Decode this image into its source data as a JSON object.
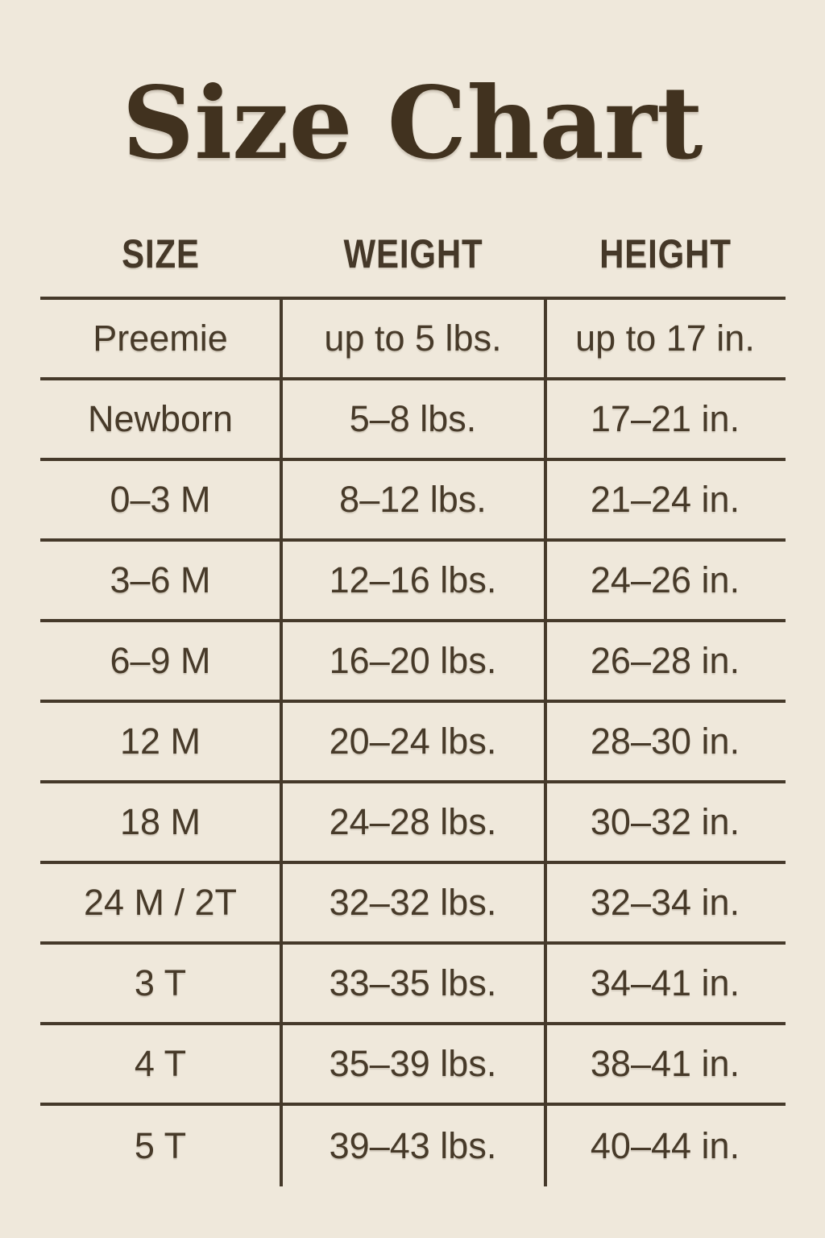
{
  "page": {
    "title": "Size Chart",
    "background_color": "#efe8db",
    "text_color": "#473a29",
    "line_color": "#45392a",
    "title_color": "#41321f"
  },
  "chart_data": {
    "type": "table",
    "title": "Size Chart",
    "columns": [
      "SIZE",
      "WEIGHT",
      "HEIGHT"
    ],
    "rows": [
      {
        "size": "Preemie",
        "weight": "up to 5 lbs.",
        "height": "up to 17 in."
      },
      {
        "size": "Newborn",
        "weight": "5–8 lbs.",
        "height": "17–21 in."
      },
      {
        "size": "0–3 M",
        "weight": "8–12 lbs.",
        "height": "21–24 in."
      },
      {
        "size": "3–6 M",
        "weight": "12–16 lbs.",
        "height": "24–26 in."
      },
      {
        "size": "6–9 M",
        "weight": "16–20 lbs.",
        "height": "26–28 in."
      },
      {
        "size": "12 M",
        "weight": "20–24 lbs.",
        "height": "28–30 in."
      },
      {
        "size": "18 M",
        "weight": "24–28 lbs.",
        "height": "30–32 in."
      },
      {
        "size": "24 M / 2T",
        "weight": "32–32 lbs.",
        "height": "32–34 in."
      },
      {
        "size": "3 T",
        "weight": "33–35 lbs.",
        "height": "34–41 in."
      },
      {
        "size": "4 T",
        "weight": "35–39 lbs.",
        "height": "38–41 in."
      },
      {
        "size": "5 T",
        "weight": "39–43 lbs.",
        "height": "40–44 in."
      }
    ]
  }
}
